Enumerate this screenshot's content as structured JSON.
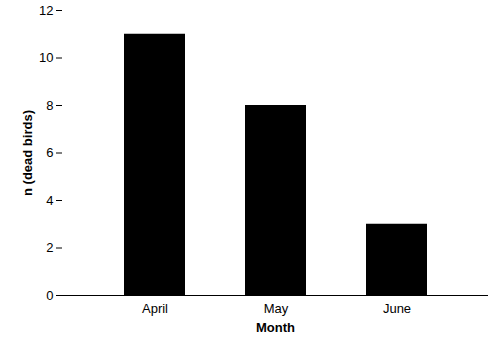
{
  "chart_data": {
    "type": "bar",
    "categories": [
      "April",
      "May",
      "June"
    ],
    "values": [
      11,
      8,
      3
    ],
    "color": "#000000",
    "x_label": "Month",
    "y_label": "n (dead birds)",
    "ylim": [
      0,
      12
    ],
    "yticks": [
      0,
      2,
      4,
      6,
      8,
      10,
      12
    ],
    "grid": false
  }
}
